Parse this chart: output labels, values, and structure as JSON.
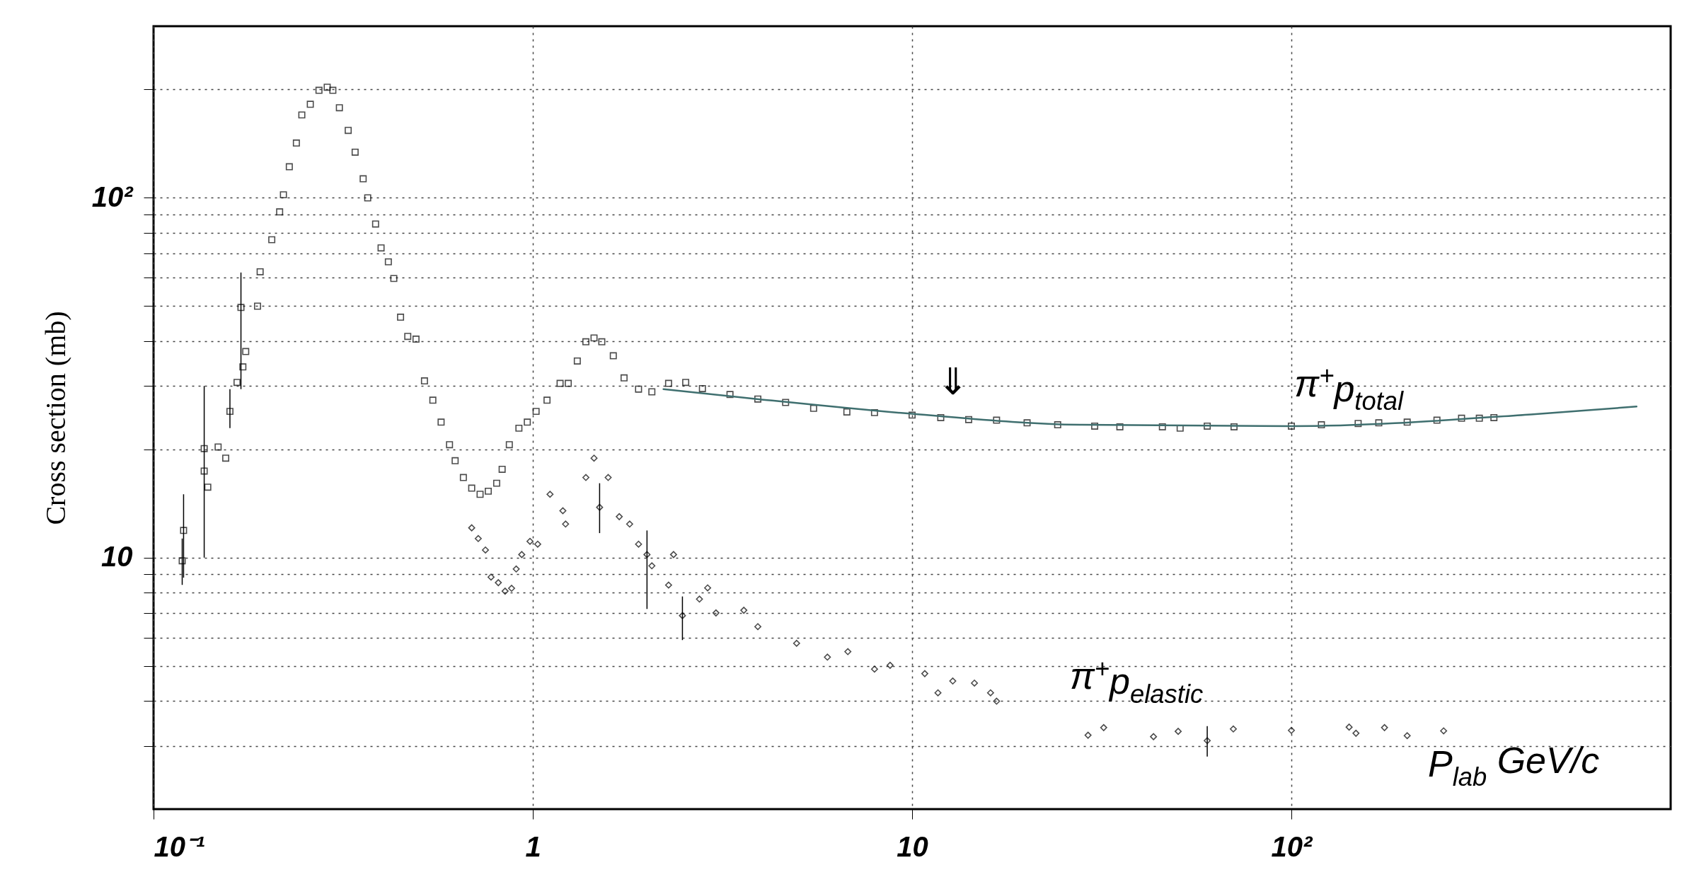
{
  "chart_data": {
    "type": "scatter",
    "xlabel": "P$_{lab}$ GeV/c",
    "ylabel": "Cross section (mb)",
    "log": "xy",
    "grid": true,
    "xlim": [
      0.1,
      1000
    ],
    "ylim": [
      2,
      300
    ],
    "xticks": [
      {
        "value": 0.1,
        "label": "10⁻¹"
      },
      1,
      10,
      {
        "value": 100,
        "label": "10²"
      }
    ],
    "yticks": [
      {
        "value": 3,
        "label": null
      },
      {
        "value": 4,
        "label": null
      },
      {
        "value": 5,
        "label": null
      },
      {
        "value": 6,
        "label": null
      },
      {
        "value": 7,
        "label": null
      },
      {
        "value": 8,
        "label": null
      },
      {
        "value": 9,
        "label": null
      },
      10,
      {
        "value": 20,
        "label": null
      },
      {
        "value": 30,
        "label": null
      },
      {
        "value": 40,
        "label": null
      },
      {
        "value": 50,
        "label": null
      },
      {
        "value": 60,
        "label": null
      },
      {
        "value": 70,
        "label": null
      },
      {
        "value": 80,
        "label": null
      },
      {
        "value": 90,
        "label": null
      },
      {
        "value": 100,
        "label": "10²"
      },
      {
        "value": 200,
        "label": null
      }
    ],
    "annotations": [
      "⇓"
    ],
    "series": [
      {
        "name": "π$^{+}$p$_{total}$",
        "color": "#000000",
        "marker": "square",
        "x": [
          0.119,
          0.12,
          0.136,
          0.136,
          0.139,
          0.148,
          0.155,
          0.159,
          0.166,
          0.172,
          0.175,
          0.17,
          0.188,
          0.191,
          0.205,
          0.215,
          0.22,
          0.228,
          0.238,
          0.246,
          0.259,
          0.273,
          0.287,
          0.297,
          0.309,
          0.326,
          0.34,
          0.357,
          0.367,
          0.385,
          0.398,
          0.416,
          0.43,
          0.448,
          0.468,
          0.492,
          0.518,
          0.545,
          0.573,
          0.603,
          0.624,
          0.656,
          0.69,
          0.726,
          0.763,
          0.803,
          0.83,
          0.867,
          0.919,
          0.967,
          1.02,
          1.09,
          1.18,
          1.24,
          1.31,
          1.38,
          1.45,
          1.52,
          1.63,
          1.74,
          1.9,
          2.06,
          2.28,
          2.53,
          2.8,
          3.31,
          3.92,
          4.64,
          5.5,
          6.73,
          7.96,
          10.0,
          11.9,
          14.1,
          16.7,
          20.1,
          24.2,
          30.3,
          35.3,
          45.7,
          50.9,
          60.0,
          70.6,
          100,
          120,
          150,
          170,
          202,
          242,
          281,
          313,
          342
        ],
        "values": [
          9.8,
          11.9,
          20.1,
          17.4,
          15.7,
          20.3,
          18.9,
          25.5,
          30.7,
          33.9,
          37.4,
          49.6,
          50.0,
          62.3,
          76.5,
          91.4,
          102,
          122,
          142,
          170,
          182,
          199,
          203,
          199,
          178,
          154,
          134,
          113,
          100,
          84.6,
          72.6,
          66.4,
          59.7,
          46.6,
          41.2,
          40.5,
          31.0,
          27.4,
          23.8,
          20.6,
          18.6,
          16.7,
          15.6,
          15.0,
          15.3,
          16.1,
          17.6,
          20.6,
          22.9,
          23.8,
          25.5,
          27.4,
          30.5,
          30.5,
          35.2,
          39.8,
          40.8,
          39.8,
          36.4,
          31.6,
          29.4,
          28.9,
          30.5,
          30.7,
          29.5,
          28.4,
          27.6,
          27.0,
          26.0,
          25.4,
          25.3,
          24.9,
          24.5,
          24.2,
          24.1,
          23.7,
          23.4,
          23.2,
          23.1,
          23.1,
          22.9,
          23.2,
          23.1,
          23.2,
          23.4,
          23.6,
          23.7,
          23.8,
          24.1,
          24.4,
          24.4,
          24.5
        ],
        "errors": [
          [
            8.4,
            11.3
          ],
          [
            8.8,
            15.0
          ],
          null,
          [
            10,
            30
          ],
          null,
          null,
          null,
          [
            22.9,
            29.4
          ],
          null,
          null,
          null,
          [
            29.4,
            62
          ],
          null,
          null,
          null,
          null,
          null,
          null,
          null,
          null,
          null,
          null,
          null,
          null,
          null,
          null,
          null,
          null,
          null,
          null,
          null,
          null,
          null,
          null,
          null,
          null,
          null,
          null,
          null,
          null,
          null,
          null,
          null,
          null,
          null,
          null,
          null,
          null,
          null,
          null,
          null,
          null,
          null,
          null,
          null,
          null,
          null,
          null,
          null,
          null,
          null,
          null,
          null,
          null,
          null,
          null,
          null,
          null,
          null,
          null,
          null,
          null,
          null,
          null,
          null,
          null,
          null,
          null,
          null,
          null,
          null,
          null,
          null,
          null,
          null,
          null,
          null,
          null,
          null,
          null,
          null,
          null
        ]
      },
      {
        "name": "π$^{+}$p$_{elastic}$",
        "color": "#000000",
        "marker": "diamond",
        "x": [
          0.69,
          0.718,
          0.75,
          0.776,
          0.811,
          0.845,
          0.879,
          0.904,
          0.935,
          0.983,
          1.03,
          1.11,
          1.2,
          1.22,
          1.38,
          1.45,
          1.5,
          1.58,
          1.69,
          1.8,
          1.9,
          2.0,
          2.06,
          2.28,
          2.35,
          2.48,
          2.75,
          2.89,
          3.04,
          3.6,
          3.92,
          4.96,
          5.98,
          6.77,
          7.96,
          8.75,
          10.8,
          11.7,
          12.8,
          14.6,
          16.1,
          16.7,
          29.1,
          32.0,
          43.3,
          50.3,
          60.0,
          70.3,
          100,
          142,
          148,
          176,
          202,
          252
        ],
        "values": [
          12.1,
          11.3,
          10.5,
          8.83,
          8.52,
          8.07,
          8.22,
          9.3,
          10.2,
          11.1,
          10.9,
          15.0,
          13.5,
          12.4,
          16.7,
          18.9,
          13.8,
          16.7,
          13.0,
          12.4,
          10.9,
          10.2,
          9.49,
          8.39,
          10.2,
          6.9,
          7.67,
          8.24,
          7.02,
          7.14,
          6.43,
          5.78,
          5.29,
          5.48,
          4.9,
          5.02,
          4.76,
          4.21,
          4.54,
          4.48,
          4.21,
          3.99,
          3.21,
          3.37,
          3.18,
          3.29,
          3.1,
          3.34,
          3.31,
          3.38,
          3.25,
          3.37,
          3.2,
          3.3
        ],
        "errors": [
          null,
          null,
          null,
          null,
          null,
          null,
          null,
          null,
          null,
          null,
          null,
          null,
          null,
          null,
          null,
          null,
          [
            11.7,
            16.1
          ],
          null,
          null,
          null,
          null,
          [
            7.2,
            11.9
          ],
          null,
          null,
          null,
          [
            5.9,
            7.8
          ],
          null,
          null,
          null,
          null,
          null,
          null,
          null,
          null,
          null,
          null,
          null,
          null,
          null,
          null,
          null,
          null,
          null,
          null,
          null,
          null,
          [
            2.8,
            3.4
          ],
          null,
          null,
          null,
          null,
          null,
          null,
          null
        ]
      },
      {
        "type": "line",
        "color": "#3f6f6f",
        "marker": "none",
        "line_style": "solid",
        "x": [
          2.21,
          3.9,
          10,
          28,
          100,
          428,
          813
        ],
        "values": [
          29.4,
          27.6,
          25.1,
          23.4,
          23.2,
          25.0,
          26.3
        ]
      }
    ]
  }
}
